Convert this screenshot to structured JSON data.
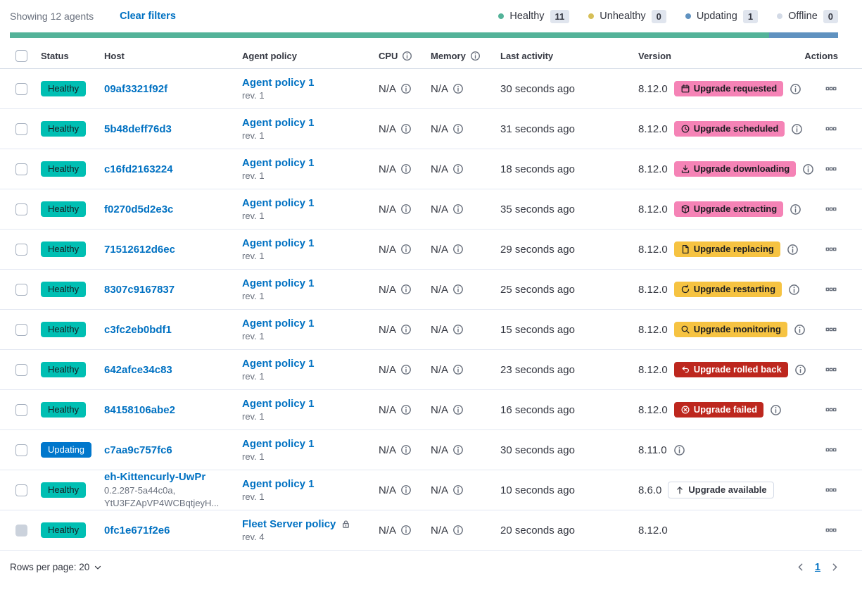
{
  "header_bar": {
    "showing": "Showing 12 agents",
    "clear_filters": "Clear filters",
    "legend": [
      {
        "label": "Healthy",
        "count": "11",
        "color": "#54B399"
      },
      {
        "label": "Unhealthy",
        "count": "0",
        "color": "#D6BF57"
      },
      {
        "label": "Updating",
        "count": "1",
        "color": "#6092C0"
      },
      {
        "label": "Offline",
        "count": "0",
        "color": "#D3DAE6"
      }
    ]
  },
  "status_bar": {
    "segments": [
      {
        "status": "healthy",
        "color": "#54B399",
        "fraction": 0.9167
      },
      {
        "status": "updating",
        "color": "#6092C0",
        "fraction": 0.0833
      }
    ]
  },
  "table": {
    "headers": {
      "status": "Status",
      "host": "Host",
      "policy": "Agent policy",
      "cpu": "CPU",
      "memory": "Memory",
      "last_activity": "Last activity",
      "version": "Version",
      "actions": "Actions"
    },
    "rows": [
      {
        "status_label": "Healthy",
        "status_bg": "#00BFB3",
        "status_fg": "#1A1C21",
        "host": "09af3321f92f",
        "host_sub": "",
        "policy": "Agent policy 1",
        "rev": "rev. 1",
        "policy_locked": false,
        "cpu": "N/A",
        "memory": "N/A",
        "last_activity": "30 seconds ago",
        "version": "8.12.0",
        "upgrade": {
          "label": "Upgrade requested",
          "icon": "calendar-icon",
          "bg": "#F583B6",
          "fg": "#1A1C21",
          "border": ""
        },
        "version_info": true,
        "checkbox_disabled": false
      },
      {
        "status_label": "Healthy",
        "status_bg": "#00BFB3",
        "status_fg": "#1A1C21",
        "host": "5b48deff76d3",
        "host_sub": "",
        "policy": "Agent policy 1",
        "rev": "rev. 1",
        "policy_locked": false,
        "cpu": "N/A",
        "memory": "N/A",
        "last_activity": "31 seconds ago",
        "version": "8.12.0",
        "upgrade": {
          "label": "Upgrade scheduled",
          "icon": "clock-icon",
          "bg": "#F583B6",
          "fg": "#1A1C21",
          "border": ""
        },
        "version_info": true,
        "checkbox_disabled": false
      },
      {
        "status_label": "Healthy",
        "status_bg": "#00BFB3",
        "status_fg": "#1A1C21",
        "host": "c16fd2163224",
        "host_sub": "",
        "policy": "Agent policy 1",
        "rev": "rev. 1",
        "policy_locked": false,
        "cpu": "N/A",
        "memory": "N/A",
        "last_activity": "18 seconds ago",
        "version": "8.12.0",
        "upgrade": {
          "label": "Upgrade downloading",
          "icon": "download-icon",
          "bg": "#F583B6",
          "fg": "#1A1C21",
          "border": ""
        },
        "version_info": true,
        "checkbox_disabled": false
      },
      {
        "status_label": "Healthy",
        "status_bg": "#00BFB3",
        "status_fg": "#1A1C21",
        "host": "f0270d5d2e3c",
        "host_sub": "",
        "policy": "Agent policy 1",
        "rev": "rev. 1",
        "policy_locked": false,
        "cpu": "N/A",
        "memory": "N/A",
        "last_activity": "35 seconds ago",
        "version": "8.12.0",
        "upgrade": {
          "label": "Upgrade extracting",
          "icon": "package-icon",
          "bg": "#F583B6",
          "fg": "#1A1C21",
          "border": ""
        },
        "version_info": true,
        "checkbox_disabled": false
      },
      {
        "status_label": "Healthy",
        "status_bg": "#00BFB3",
        "status_fg": "#1A1C21",
        "host": "71512612d6ec",
        "host_sub": "",
        "policy": "Agent policy 1",
        "rev": "rev. 1",
        "policy_locked": false,
        "cpu": "N/A",
        "memory": "N/A",
        "last_activity": "29 seconds ago",
        "version": "8.12.0",
        "upgrade": {
          "label": "Upgrade replacing",
          "icon": "document-icon",
          "bg": "#F6C342",
          "fg": "#1A1C21",
          "border": ""
        },
        "version_info": true,
        "checkbox_disabled": false
      },
      {
        "status_label": "Healthy",
        "status_bg": "#00BFB3",
        "status_fg": "#1A1C21",
        "host": "8307c9167837",
        "host_sub": "",
        "policy": "Agent policy 1",
        "rev": "rev. 1",
        "policy_locked": false,
        "cpu": "N/A",
        "memory": "N/A",
        "last_activity": "25 seconds ago",
        "version": "8.12.0",
        "upgrade": {
          "label": "Upgrade restarting",
          "icon": "refresh-icon",
          "bg": "#F6C342",
          "fg": "#1A1C21",
          "border": ""
        },
        "version_info": true,
        "checkbox_disabled": false
      },
      {
        "status_label": "Healthy",
        "status_bg": "#00BFB3",
        "status_fg": "#1A1C21",
        "host": "c3fc2eb0bdf1",
        "host_sub": "",
        "policy": "Agent policy 1",
        "rev": "rev. 1",
        "policy_locked": false,
        "cpu": "N/A",
        "memory": "N/A",
        "last_activity": "15 seconds ago",
        "version": "8.12.0",
        "upgrade": {
          "label": "Upgrade monitoring",
          "icon": "inspect-icon",
          "bg": "#F6C342",
          "fg": "#1A1C21",
          "border": ""
        },
        "version_info": true,
        "checkbox_disabled": false
      },
      {
        "status_label": "Healthy",
        "status_bg": "#00BFB3",
        "status_fg": "#1A1C21",
        "host": "642afce34c83",
        "host_sub": "",
        "policy": "Agent policy 1",
        "rev": "rev. 1",
        "policy_locked": false,
        "cpu": "N/A",
        "memory": "N/A",
        "last_activity": "23 seconds ago",
        "version": "8.12.0",
        "upgrade": {
          "label": "Upgrade rolled back",
          "icon": "rollback-icon",
          "bg": "#BD271E",
          "fg": "#FFFFFF",
          "border": ""
        },
        "version_info": true,
        "checkbox_disabled": false
      },
      {
        "status_label": "Healthy",
        "status_bg": "#00BFB3",
        "status_fg": "#1A1C21",
        "host": "84158106abe2",
        "host_sub": "",
        "policy": "Agent policy 1",
        "rev": "rev. 1",
        "policy_locked": false,
        "cpu": "N/A",
        "memory": "N/A",
        "last_activity": "16 seconds ago",
        "version": "8.12.0",
        "upgrade": {
          "label": "Upgrade failed",
          "icon": "error-icon",
          "bg": "#BD271E",
          "fg": "#FFFFFF",
          "border": ""
        },
        "version_info": true,
        "checkbox_disabled": false
      },
      {
        "status_label": "Updating",
        "status_bg": "#0077CC",
        "status_fg": "#FFFFFF",
        "host": "c7aa9c757fc6",
        "host_sub": "",
        "policy": "Agent policy 1",
        "rev": "rev. 1",
        "policy_locked": false,
        "cpu": "N/A",
        "memory": "N/A",
        "last_activity": "30 seconds ago",
        "version": "8.11.0",
        "upgrade": null,
        "version_info": true,
        "checkbox_disabled": false
      },
      {
        "status_label": "Healthy",
        "status_bg": "#00BFB3",
        "status_fg": "#1A1C21",
        "host": "eh-Kittencurly-UwPr",
        "host_sub": "0.2.287-5a44c0a, YtU3FZApVP4WCBqtjeyH...",
        "policy": "Agent policy 1",
        "rev": "rev. 1",
        "policy_locked": false,
        "cpu": "N/A",
        "memory": "N/A",
        "last_activity": "10 seconds ago",
        "version": "8.6.0",
        "upgrade": {
          "label": "Upgrade available",
          "icon": "upgrade-icon",
          "bg": "#FFFFFF",
          "fg": "#343741",
          "border": "#D3DAE6"
        },
        "version_info": false,
        "checkbox_disabled": false
      },
      {
        "status_label": "Healthy",
        "status_bg": "#00BFB3",
        "status_fg": "#1A1C21",
        "host": "0fc1e671f2e6",
        "host_sub": "",
        "policy": "Fleet Server policy",
        "rev": "rev. 4",
        "policy_locked": true,
        "cpu": "N/A",
        "memory": "N/A",
        "last_activity": "20 seconds ago",
        "version": "8.12.0",
        "upgrade": null,
        "version_info": false,
        "checkbox_disabled": true
      }
    ]
  },
  "footer": {
    "rows_per_page": "Rows per page: 20",
    "page": "1"
  }
}
